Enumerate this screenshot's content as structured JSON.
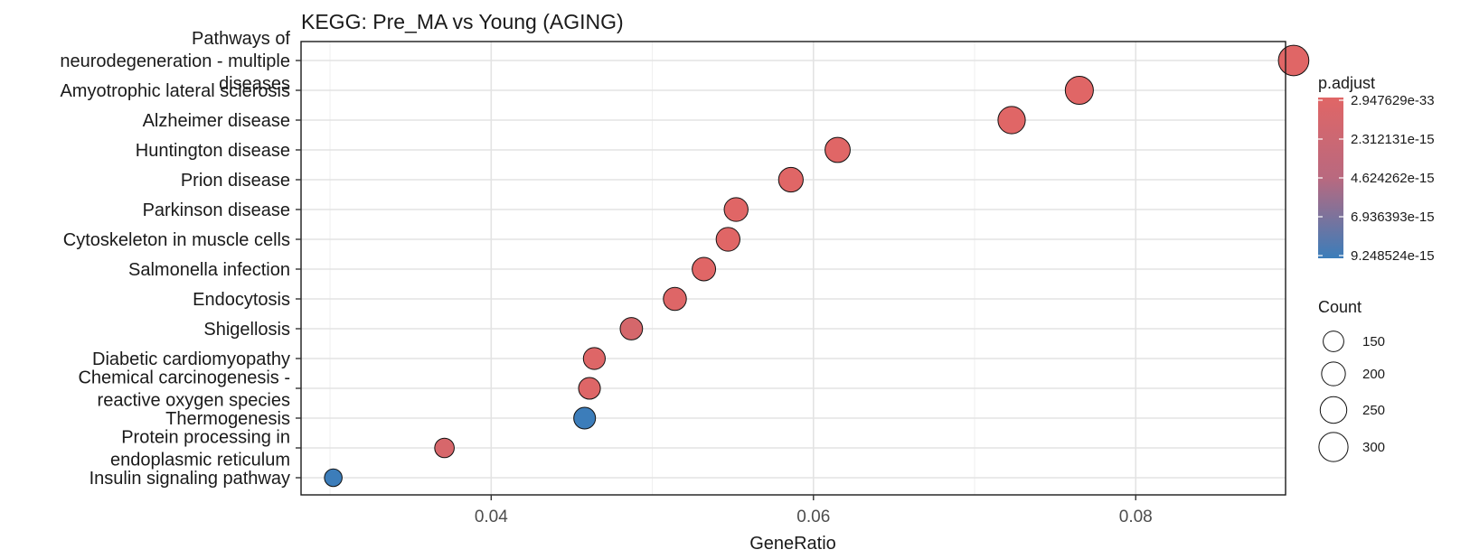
{
  "chart_data": {
    "type": "scatter",
    "title": "KEGG: Pre_MA vs Young (AGING)",
    "xlabel": "GeneRatio",
    "ylabel": "",
    "xlim": [
      0.0282,
      0.0893
    ],
    "x_ticks": [
      "0.04",
      "0.06",
      "0.08"
    ],
    "x_tick_values": [
      0.04,
      0.06,
      0.08
    ],
    "grid": true,
    "categories": [
      "Pathways of\nneurodegeneration - multiple\ndiseases",
      "Amyotrophic lateral sclerosis",
      "Alzheimer disease",
      "Huntington disease",
      "Prion disease",
      "Parkinson disease",
      "Cytoskeleton in muscle cells",
      "Salmonella infection",
      "Endocytosis",
      "Shigellosis",
      "Diabetic cardiomyopathy",
      "Chemical carcinogenesis -\nreactive oxygen species",
      "Thermogenesis",
      "Protein processing in\nendoplasmic reticulum",
      "Insulin signaling pathway"
    ],
    "points": [
      {
        "category": "Pathways of\nneurodegeneration - multiple\ndiseases",
        "x": 0.0898,
        "count": 328,
        "p_adjust": 2.9e-33
      },
      {
        "category": "Amyotrophic lateral sclerosis",
        "x": 0.0765,
        "count": 279,
        "p_adjust": 1e-30
      },
      {
        "category": "Alzheimer disease",
        "x": 0.0723,
        "count": 264,
        "p_adjust": 1e-25
      },
      {
        "category": "Huntington disease",
        "x": 0.0615,
        "count": 224,
        "p_adjust": 1e-22
      },
      {
        "category": "Prion disease",
        "x": 0.0586,
        "count": 214,
        "p_adjust": 1e-20
      },
      {
        "category": "Parkinson disease",
        "x": 0.0552,
        "count": 201,
        "p_adjust": 1e-19
      },
      {
        "category": "Cytoskeleton in muscle cells",
        "x": 0.0547,
        "count": 200,
        "p_adjust": 1e-17
      },
      {
        "category": "Salmonella infection",
        "x": 0.0532,
        "count": 194,
        "p_adjust": 1e-17
      },
      {
        "category": "Endocytosis",
        "x": 0.0514,
        "count": 187,
        "p_adjust": 1e-16
      },
      {
        "category": "Shigellosis",
        "x": 0.0487,
        "count": 177,
        "p_adjust": 6e-16
      },
      {
        "category": "Diabetic cardiomyopathy",
        "x": 0.0464,
        "count": 169,
        "p_adjust": 1e-16
      },
      {
        "category": "Chemical carcinogenesis -\nreactive oxygen species",
        "x": 0.0461,
        "count": 168,
        "p_adjust": 1e-16
      },
      {
        "category": "Thermogenesis",
        "x": 0.0458,
        "count": 167,
        "p_adjust": 9.2e-15
      },
      {
        "category": "Protein processing in\nendoplasmic reticulum",
        "x": 0.0371,
        "count": 135,
        "p_adjust": 5e-16
      },
      {
        "category": "Insulin signaling pathway",
        "x": 0.0302,
        "count": 110,
        "p_adjust": 9.2e-15
      }
    ],
    "color_legend": {
      "title": "p.adjust",
      "labels": [
        "2.947629e-33",
        "2.312131e-15",
        "4.624262e-15",
        "6.936393e-15",
        "9.248524e-15"
      ],
      "values": [
        2.947629e-33,
        2.312131e-15,
        4.624262e-15,
        6.936393e-15,
        9.248524e-15
      ],
      "low_color": "#E06666",
      "high_color": "#3B7DBA"
    },
    "size_legend": {
      "title": "Count",
      "labels": [
        "150",
        "200",
        "250",
        "300"
      ],
      "values": [
        150,
        200,
        250,
        300
      ]
    },
    "legend_position": "right"
  }
}
